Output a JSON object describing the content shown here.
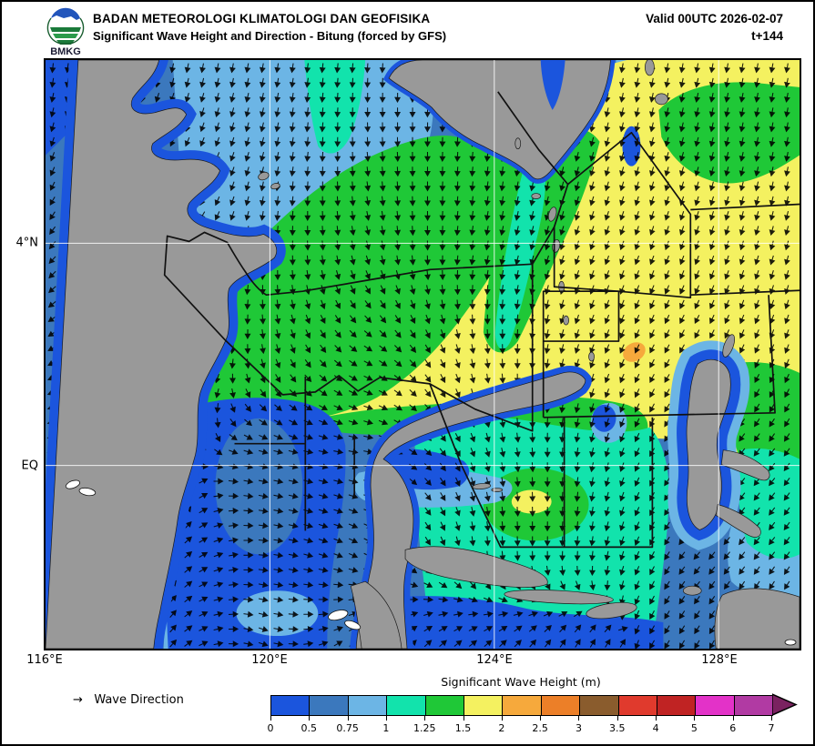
{
  "header": {
    "agency": "BADAN METEOROLOGI KLIMATOLOGI DAN GEOFISIKA",
    "product": "Significant Wave Height and Direction - Bitung (forced by GFS)",
    "valid": "Valid 00UTC 2026-02-07",
    "tstep": "t+144",
    "logo_text": "BMKG"
  },
  "map": {
    "x_ticks": [
      "116°E",
      "120°E",
      "124°E",
      "128°E"
    ],
    "y_ticks": [
      "4°N",
      "EQ"
    ]
  },
  "legend": {
    "direction_arrow": "→",
    "direction_label": "Wave Direction",
    "colorbar_title": "Significant Wave Height (m)",
    "tick_labels": [
      "0",
      "0.5",
      "0.75",
      "1",
      "1.25",
      "1.5",
      "2",
      "2.5",
      "3",
      "3.5",
      "4",
      "5",
      "6",
      "7"
    ],
    "band_colors": [
      "#1b55dd",
      "#3b78bd",
      "#6cb5e5",
      "#12e3ac",
      "#1fc837",
      "#f4f160",
      "#f6a93c",
      "#ec7f28",
      "#8a5c2d",
      "#e03a2d",
      "#c02323",
      "#e332c8",
      "#b13aa3"
    ],
    "over_arrow_color": "#7a2260"
  },
  "colors": {
    "land": "#999999",
    "sea_base": "#3b78bd",
    "grid_line": "#ffffff",
    "zone_outline": "#111111",
    "orange_patch": "#f6a93c"
  },
  "chart_data": {
    "type": "heatmap",
    "title": "Significant Wave Height and Direction - Bitung (forced by GFS)",
    "variable": "significant wave height",
    "units": "m",
    "valid_time": "00UTC 2026-02-07",
    "lead_time": "t+144",
    "forcing_model": "GFS",
    "lon_range_deg_e": [
      116,
      129.4
    ],
    "lat_range_deg_n": [
      -3.3,
      7.3
    ],
    "lon_gridlines_deg_e": [
      120,
      124,
      128
    ],
    "lat_gridlines_deg_n": [
      4,
      0
    ],
    "wave_height_bin_edges_m": [
      0,
      0.5,
      0.75,
      1,
      1.25,
      1.5,
      2,
      2.5,
      3,
      3.5,
      4,
      5,
      6,
      7
    ],
    "notable_features": [
      {
        "region": "open Pacific east and northeast of Sulawesi (around Bitung)",
        "shs_m": "1.5-2 (yellow), small 2-2.5 patch near 126.5E 1.8N"
      },
      {
        "region": "Sulawesi Sea west part",
        "shs_m": "0.5-1 (blue to light blue)"
      },
      {
        "region": "central Sulawesi Sea / Sangihe waters",
        "shs_m": "1-1.5 (teal to green)"
      },
      {
        "region": "Makassar Strait and Tomini Gulf",
        "shs_m": "0-0.75 (blue)"
      },
      {
        "region": "Maluku Sea",
        "shs_m": "1-1.5 with local 1.5-2 core (green/yellow blob)"
      }
    ],
    "direction_field": {
      "description": "wave direction control grid, screen angles in degrees (0=east, 90=south/down, 180=west, 270=north/up), 7 rows x 8 cols spanning the map",
      "angles": [
        [
          95,
          100,
          100,
          95,
          90,
          100,
          100,
          100
        ],
        [
          110,
          120,
          105,
          85,
          95,
          105,
          105,
          100
        ],
        [
          130,
          150,
          95,
          75,
          100,
          110,
          110,
          105
        ],
        [
          150,
          170,
          80,
          30,
          80,
          110,
          120,
          110
        ],
        [
          170,
          185,
          15,
          10,
          70,
          100,
          130,
          125
        ],
        [
          290,
          300,
          5,
          30,
          85,
          95,
          130,
          125
        ],
        [
          290,
          300,
          20,
          310,
          320,
          300,
          120,
          115
        ]
      ]
    }
  }
}
